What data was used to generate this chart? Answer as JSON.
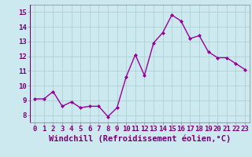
{
  "x": [
    0,
    1,
    2,
    3,
    4,
    5,
    6,
    7,
    8,
    9,
    10,
    11,
    12,
    13,
    14,
    15,
    16,
    17,
    18,
    19,
    20,
    21,
    22,
    23
  ],
  "y": [
    9.1,
    9.1,
    9.6,
    8.6,
    8.9,
    8.5,
    8.6,
    8.6,
    7.9,
    8.5,
    10.6,
    12.1,
    10.7,
    12.9,
    13.6,
    14.8,
    14.4,
    13.2,
    13.4,
    12.3,
    11.9,
    11.9,
    11.5,
    11.1
  ],
  "line_color": "#990099",
  "marker": "D",
  "marker_size": 2,
  "background_color": "#cce9f0",
  "grid_color": "#aacccc",
  "xlim": [
    -0.5,
    23.5
  ],
  "ylim": [
    7.5,
    15.5
  ],
  "yticks": [
    8,
    9,
    10,
    11,
    12,
    13,
    14,
    15
  ],
  "xticks": [
    0,
    1,
    2,
    3,
    4,
    5,
    6,
    7,
    8,
    9,
    10,
    11,
    12,
    13,
    14,
    15,
    16,
    17,
    18,
    19,
    20,
    21,
    22,
    23
  ],
  "xlabel": "Windchill (Refroidissement éolien,°C)",
  "xlabel_fontsize": 7.5,
  "tick_fontsize": 6.5,
  "line_width": 1.0,
  "label_color": "#770077"
}
